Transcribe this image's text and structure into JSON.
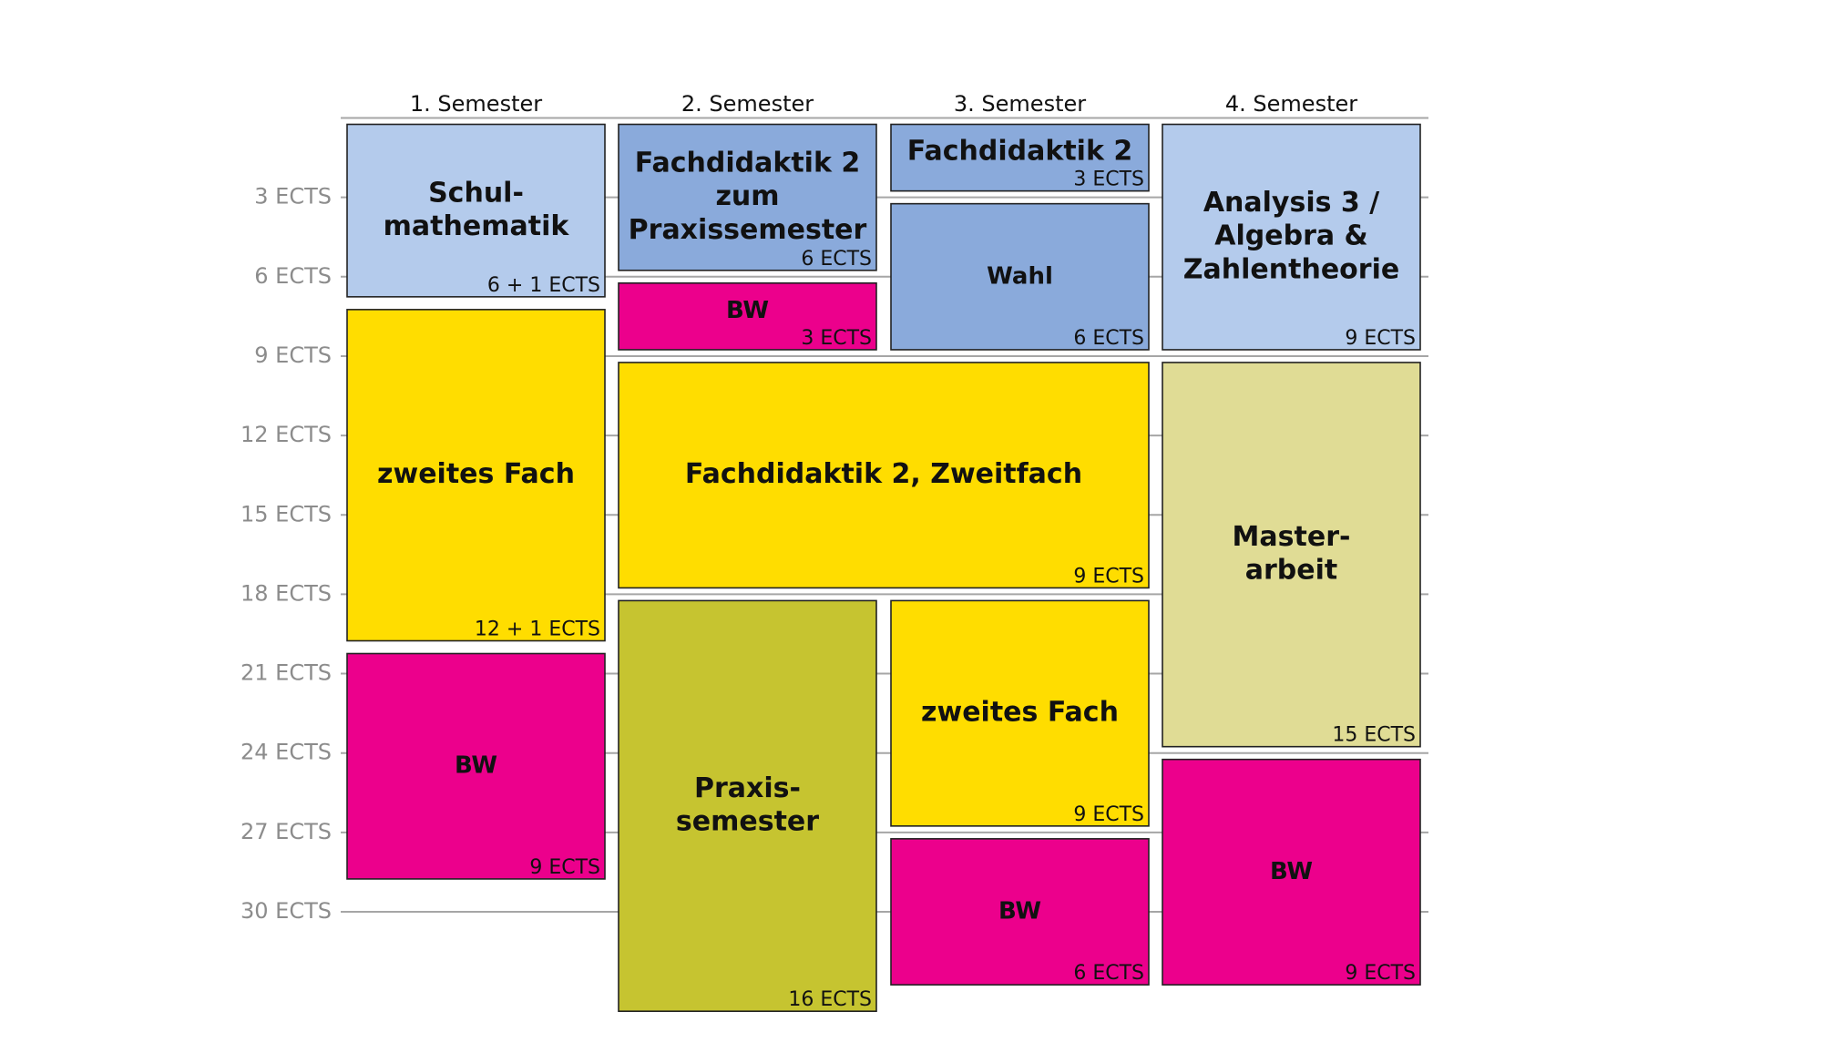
{
  "colors": {
    "light_blue": "#b4cbec",
    "mid_blue": "#8aaadb",
    "magenta": "#ec008c",
    "yellow": "#ffdd00",
    "olive": "#c6c430",
    "khaki": "#e0dc95"
  },
  "axis": {
    "ticks": [
      "3 ECTS",
      "6 ECTS",
      "9 ECTS",
      "12 ECTS",
      "15 ECTS",
      "18 ECTS",
      "21 ECTS",
      "24 ECTS",
      "27 ECTS",
      "30 ECTS"
    ]
  },
  "semesters": [
    {
      "label": "1. Semester",
      "modules": [
        {
          "title": [
            "Schul-",
            "mathematik"
          ],
          "ects": "6 + 1 ECTS",
          "credits": 7,
          "color": "light_blue"
        },
        {
          "title": [
            "zweites Fach"
          ],
          "ects": "12 + 1 ECTS",
          "credits": 13,
          "color": "yellow"
        },
        {
          "title": [
            "BW"
          ],
          "ects": "9 ECTS",
          "credits": 9,
          "color": "magenta"
        }
      ]
    },
    {
      "label": "2. Semester",
      "modules": [
        {
          "title": [
            "Fachdidaktik 2",
            "zum",
            "Praxissemester"
          ],
          "ects": "6 ECTS",
          "credits": 6,
          "color": "mid_blue"
        },
        {
          "title": [
            "BW"
          ],
          "ects": "3 ECTS",
          "credits": 3,
          "color": "magenta"
        },
        {
          "title": [
            "Praxis-",
            "semester"
          ],
          "ects": "16 ECTS",
          "credits": 16,
          "color": "olive"
        }
      ]
    },
    {
      "label": "3. Semester",
      "modules": [
        {
          "title": [
            "Fachdidaktik 2"
          ],
          "ects": "3 ECTS",
          "credits": 3,
          "color": "mid_blue"
        },
        {
          "title": [
            "Wahl"
          ],
          "ects": "6 ECTS",
          "credits": 6,
          "color": "mid_blue"
        },
        {
          "title": [
            "zweites Fach"
          ],
          "ects": "9 ECTS",
          "credits": 9,
          "color": "yellow"
        },
        {
          "title": [
            "BW"
          ],
          "ects": "6 ECTS",
          "credits": 6,
          "color": "magenta"
        }
      ]
    },
    {
      "label": "4. Semester",
      "modules": [
        {
          "title": [
            "Analysis 3 /",
            "Algebra &",
            "Zahlentheorie"
          ],
          "ects": "9 ECTS",
          "credits": 9,
          "color": "light_blue"
        },
        {
          "title": [
            "Master-",
            "arbeit"
          ],
          "ects": "15 ECTS",
          "credits": 15,
          "color": "khaki"
        },
        {
          "title": [
            "BW"
          ],
          "ects": "9 ECTS",
          "credits": 9,
          "color": "magenta"
        }
      ]
    }
  ],
  "shared_modules": [
    {
      "title": [
        "Fachdidaktik 2, Zweitfach"
      ],
      "ects": "9 ECTS",
      "credits": 9,
      "color": "yellow",
      "spans": [
        "2. Semester",
        "3. Semester"
      ]
    }
  ]
}
